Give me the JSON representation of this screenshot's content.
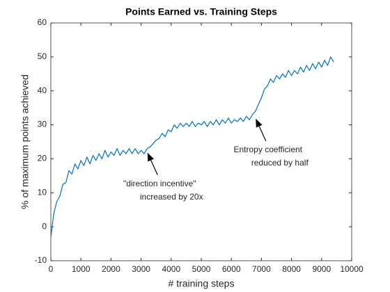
{
  "chart_data": {
    "type": "line",
    "title": "Points Earned vs. Training Steps",
    "xlabel": "# training steps",
    "ylabel": "% of maximum points achieved",
    "x": [
      0,
      100,
      200,
      300,
      400,
      500,
      600,
      700,
      800,
      900,
      1000,
      1100,
      1200,
      1300,
      1400,
      1500,
      1600,
      1700,
      1800,
      1900,
      2000,
      2100,
      2200,
      2300,
      2400,
      2500,
      2600,
      2700,
      2800,
      2900,
      3000,
      3100,
      3200,
      3300,
      3400,
      3500,
      3600,
      3700,
      3800,
      3900,
      4000,
      4100,
      4200,
      4300,
      4400,
      4500,
      4600,
      4700,
      4800,
      4900,
      5000,
      5100,
      5200,
      5300,
      5400,
      5500,
      5600,
      5700,
      5800,
      5900,
      6000,
      6100,
      6200,
      6300,
      6400,
      6500,
      6600,
      6700,
      6800,
      6900,
      7000,
      7100,
      7200,
      7300,
      7400,
      7500,
      7600,
      7700,
      7800,
      7900,
      8000,
      8100,
      8200,
      8300,
      8400,
      8500,
      8600,
      8700,
      8800,
      8900,
      9000,
      9100,
      9200,
      9300,
      9400
    ],
    "series": [
      {
        "color": "#0072bd",
        "values": [
          -3,
          4,
          7.5,
          9,
          12.5,
          13,
          16.5,
          15.5,
          18.5,
          17,
          19.5,
          18,
          20.5,
          18.5,
          21,
          19.5,
          21.5,
          20,
          22.5,
          20.5,
          22,
          21,
          23,
          21,
          22.5,
          21.5,
          23,
          21.5,
          23,
          21.5,
          22.5,
          21.5,
          23,
          23.5,
          24.5,
          25.5,
          26,
          27.5,
          26.5,
          28.5,
          28,
          30,
          29,
          30.5,
          29.5,
          30.5,
          29.5,
          31,
          29.5,
          30.5,
          30,
          31,
          29.5,
          31,
          30,
          31.5,
          30,
          31.5,
          30.5,
          32,
          30.5,
          31.5,
          31,
          32,
          31,
          32.5,
          31.5,
          33,
          34,
          36,
          38,
          40.5,
          41.5,
          43.5,
          42.5,
          44.5,
          43.5,
          45,
          44,
          46,
          44.5,
          46,
          45,
          47,
          45.5,
          47.5,
          46,
          48,
          46.5,
          48.5,
          47,
          49,
          47.5,
          50,
          48.5
        ]
      }
    ],
    "xlim": [
      0,
      10000
    ],
    "xticks": [
      0,
      1000,
      2000,
      3000,
      4000,
      5000,
      6000,
      7000,
      8000,
      9000,
      10000
    ],
    "ylim": [
      -10,
      60
    ],
    "yticks": [
      -10,
      0,
      10,
      20,
      30,
      40,
      50,
      60
    ],
    "grid": false,
    "annotations": [
      {
        "lines": [
          "\"direction incentive\"",
          "increased by 20x"
        ],
        "x": 3200,
        "y": 22
      },
      {
        "lines": [
          "Entropy coefficient",
          "reduced by half"
        ],
        "x": 6800,
        "y": 32
      }
    ]
  }
}
